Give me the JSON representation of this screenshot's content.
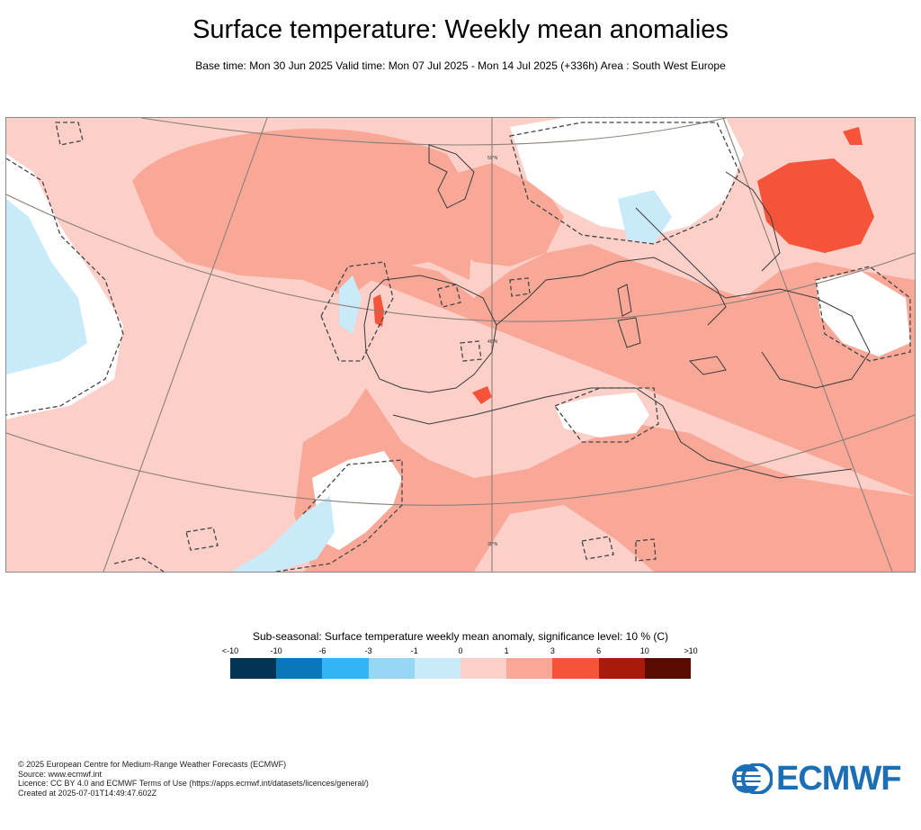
{
  "header": {
    "title": "Surface temperature: Weekly mean anomalies",
    "subtitle": "Base time: Mon 30 Jun 2025 Valid time: Mon 07 Jul 2025 - Mon 14 Jul 2025 (+336h) Area : South West Europe"
  },
  "map": {
    "graticule_labels": [
      "50°N",
      "40°N",
      "30°N"
    ],
    "colors": {
      "background_anomaly": "#fcd0c8",
      "moderate_positive": "#f9a898",
      "strong_positive": "#f5533a",
      "near_zero": "#ffffff",
      "weak_negative": "#c8eaf9",
      "moderate_negative": "#96d7f6",
      "coastline": "#3a3a3a",
      "graticule": "#8c7f78",
      "significance_contour": "#444444"
    }
  },
  "legend": {
    "title": "Sub-seasonal: Surface temperature weekly mean anomaly, significance level: 10 % (C)",
    "ticks": [
      "<-10",
      "-10",
      "-6",
      "-3",
      "-1",
      "0",
      "1",
      "3",
      "6",
      "10",
      ">10"
    ],
    "swatches": [
      "#043455",
      "#0a77ba",
      "#33b5f5",
      "#96d7f6",
      "#c8eaf9",
      "#fcd0c8",
      "#f9a898",
      "#f5533a",
      "#a81a0c",
      "#5a0c03"
    ]
  },
  "footer": {
    "lines": [
      "© 2025 European Centre for Medium-Range Weather Forecasts (ECMWF)",
      "Source: www.ecmwf.int",
      "Licence: CC BY 4.0 and ECMWF Terms of Use (https://apps.ecmwf.int/datasets/licences/general/)",
      "Created at 2025-07-01T14:49:47.602Z"
    ]
  },
  "logo": {
    "text": "ECMWF",
    "color": "#1c6fb5"
  }
}
